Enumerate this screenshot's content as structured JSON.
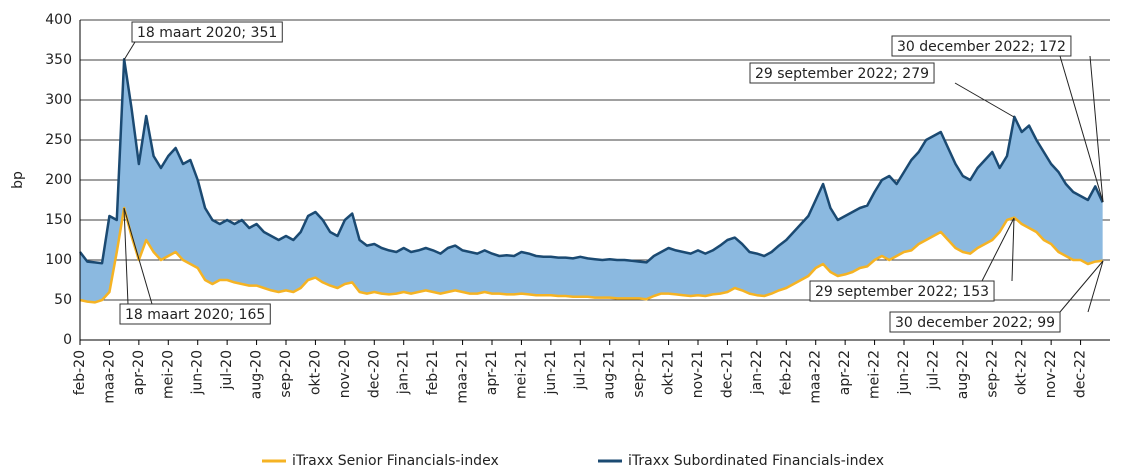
{
  "chart_data": {
    "type": "line",
    "ylabel": "bp",
    "categories": [
      "feb-20",
      null,
      null,
      null,
      "maa-20",
      null,
      null,
      null,
      "apr-20",
      null,
      null,
      null,
      "mei-20",
      null,
      null,
      null,
      "jun-20",
      null,
      null,
      null,
      "jul-20",
      null,
      null,
      null,
      "aug-20",
      null,
      null,
      null,
      "sep-20",
      null,
      null,
      null,
      "okt-20",
      null,
      null,
      null,
      "nov-20",
      null,
      null,
      null,
      "dec-20",
      null,
      null,
      null,
      "jan-21",
      null,
      null,
      null,
      "feb-21",
      null,
      null,
      null,
      "maa-21",
      null,
      null,
      null,
      "apr-21",
      null,
      null,
      null,
      "mei-21",
      null,
      null,
      null,
      "jun-21",
      null,
      null,
      null,
      "jul-21",
      null,
      null,
      null,
      "aug-21",
      null,
      null,
      null,
      "sep-21",
      null,
      null,
      null,
      "okt-21",
      null,
      null,
      null,
      "nov-21",
      null,
      null,
      null,
      "dec-21",
      null,
      null,
      null,
      "jan-22",
      null,
      null,
      null,
      "feb-22",
      null,
      null,
      null,
      "maa-22",
      null,
      null,
      null,
      "apr-22",
      null,
      null,
      null,
      "mei-22",
      null,
      null,
      null,
      "jun-22",
      null,
      null,
      null,
      "jul-22",
      null,
      null,
      null,
      "aug-22",
      null,
      null,
      null,
      "sep-22",
      null,
      null,
      null,
      "okt-22",
      null,
      null,
      null,
      "nov-22",
      null,
      null,
      null,
      "dec-22",
      null,
      null,
      null
    ],
    "series": [
      {
        "name": "iTraxx Senior Financials-index",
        "color": "#f5b324",
        "values": [
          50,
          48,
          47,
          50,
          60,
          110,
          165,
          130,
          100,
          125,
          110,
          100,
          105,
          110,
          100,
          95,
          90,
          75,
          70,
          75,
          75,
          72,
          70,
          68,
          68,
          65,
          62,
          60,
          62,
          60,
          65,
          75,
          78,
          72,
          68,
          65,
          70,
          72,
          60,
          58,
          60,
          58,
          57,
          58,
          60,
          58,
          60,
          62,
          60,
          58,
          60,
          62,
          60,
          58,
          58,
          60,
          58,
          58,
          57,
          57,
          58,
          57,
          56,
          56,
          56,
          55,
          55,
          54,
          54,
          54,
          53,
          53,
          53,
          52,
          52,
          52,
          52,
          51,
          55,
          58,
          58,
          57,
          56,
          55,
          56,
          55,
          57,
          58,
          60,
          65,
          62,
          58,
          56,
          55,
          58,
          62,
          65,
          70,
          75,
          80,
          90,
          95,
          85,
          80,
          82,
          85,
          90,
          92,
          100,
          105,
          100,
          105,
          110,
          112,
          120,
          125,
          130,
          135,
          125,
          115,
          110,
          108,
          115,
          120,
          125,
          135,
          150,
          153,
          145,
          140,
          135,
          125,
          120,
          110,
          105,
          100,
          100,
          95,
          98,
          99
        ]
      },
      {
        "name": "iTraxx Subordinated Financials-index",
        "color": "#1b4a72",
        "values": [
          110,
          98,
          97,
          96,
          155,
          150,
          351,
          290,
          220,
          280,
          230,
          215,
          230,
          240,
          220,
          225,
          200,
          165,
          150,
          145,
          150,
          145,
          150,
          140,
          145,
          135,
          130,
          125,
          130,
          125,
          135,
          155,
          160,
          150,
          135,
          130,
          150,
          158,
          125,
          118,
          120,
          115,
          112,
          110,
          115,
          110,
          112,
          115,
          112,
          108,
          115,
          118,
          112,
          110,
          108,
          112,
          108,
          105,
          106,
          105,
          110,
          108,
          105,
          104,
          104,
          103,
          103,
          102,
          104,
          102,
          101,
          100,
          101,
          100,
          100,
          99,
          98,
          97,
          105,
          110,
          115,
          112,
          110,
          108,
          112,
          108,
          112,
          118,
          125,
          128,
          120,
          110,
          108,
          105,
          110,
          118,
          125,
          135,
          145,
          155,
          175,
          195,
          165,
          150,
          155,
          160,
          165,
          168,
          185,
          200,
          205,
          195,
          210,
          225,
          235,
          250,
          255,
          260,
          240,
          220,
          205,
          200,
          215,
          225,
          235,
          215,
          230,
          279,
          260,
          268,
          250,
          235,
          220,
          210,
          195,
          185,
          180,
          175,
          192,
          172
        ]
      }
    ],
    "ylim": [
      0,
      400
    ],
    "yticks": [
      0,
      50,
      100,
      150,
      200,
      250,
      300,
      350,
      400
    ],
    "grid": true,
    "fill_between": "#8bb9e0",
    "annotations": [
      "18 maart 2020; 351",
      "18 maart 2020; 165",
      "29 september 2022; 279",
      "30 december 2022; 172",
      "29 september 2022; 153",
      "30 december 2022; 99"
    ],
    "legend": "bottom"
  }
}
